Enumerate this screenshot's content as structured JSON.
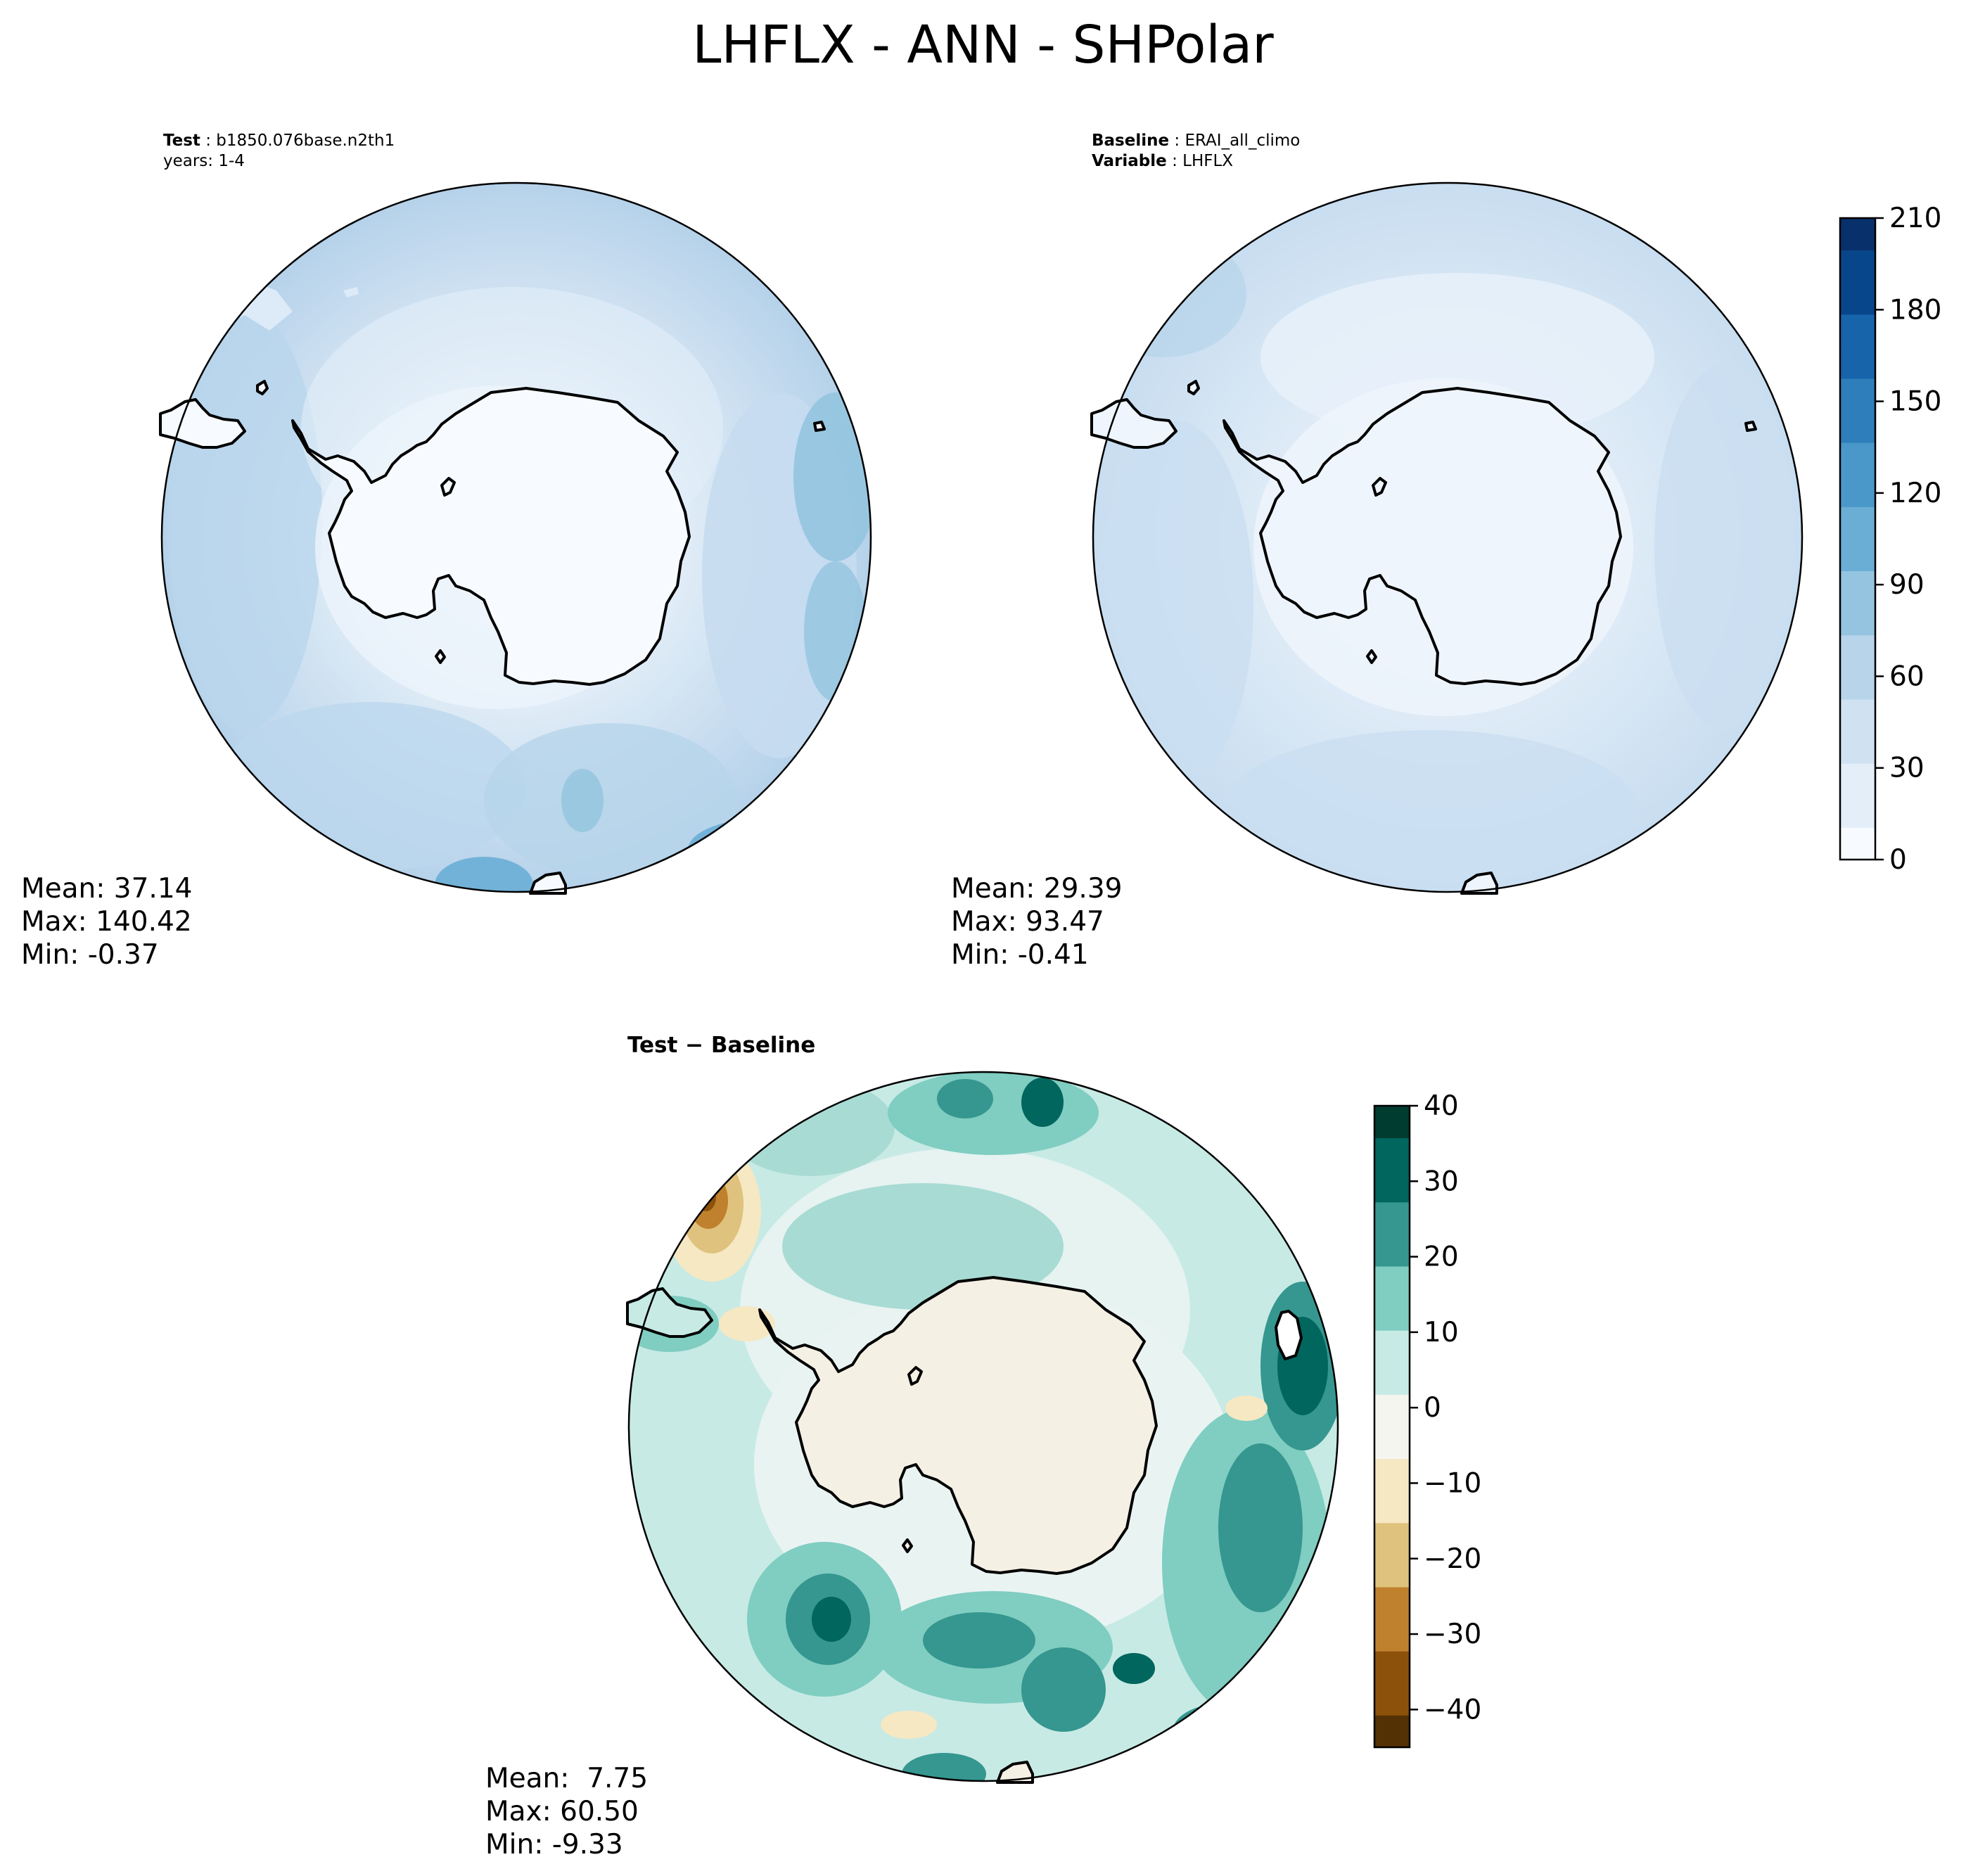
{
  "figure": {
    "title": "LHFLX - ANN - SHPolar"
  },
  "panels": {
    "test": {
      "label_key": "Test",
      "label_value": "b1850.076base.n2th1",
      "years": "years: 1-4",
      "stats": {
        "mean": "Mean: 37.14",
        "max": "Max: 140.42",
        "min": "Min: -0.37"
      }
    },
    "baseline": {
      "label_key": "Baseline",
      "label_value": "ERAI_all_climo",
      "variable_key": "Variable",
      "variable_value": "LHFLX",
      "stats": {
        "mean": "Mean: 29.39",
        "max": "Max: 93.47",
        "min": "Min: -0.41"
      }
    },
    "difference": {
      "title": "Test − Baseline",
      "stats": {
        "mean": "Mean:  7.75",
        "max": "Max: 60.50",
        "min": "Min: -9.33"
      }
    }
  },
  "colorbars": {
    "main": {
      "ticks": [
        "0",
        "30",
        "60",
        "90",
        "120",
        "150",
        "180",
        "210"
      ],
      "range": [
        0,
        210
      ],
      "levels": 21,
      "colors": [
        "#f7fbff",
        "#e3eef9",
        "#d0e1f2",
        "#b7d4ea",
        "#94c4df",
        "#6aaed6",
        "#4a98c9",
        "#2e7ebc",
        "#1764ab",
        "#08468b",
        "#08306b"
      ]
    },
    "diff": {
      "ticks": [
        "40",
        "30",
        "20",
        "10",
        "0",
        "−10",
        "−20",
        "−30",
        "−40"
      ],
      "range": [
        -45,
        40
      ],
      "colors": [
        "#543005",
        "#8c510a",
        "#bf812d",
        "#dfc27d",
        "#f6e8c3",
        "#f5f5f0",
        "#c7eae5",
        "#80cdc1",
        "#35978f",
        "#01665e",
        "#003c30"
      ]
    }
  },
  "chart_data": [
    {
      "type": "heatmap",
      "title": "Test",
      "projection": "south polar stereographic",
      "variable": "LHFLX",
      "summary": {
        "mean": 37.14,
        "max": 140.42,
        "min": -0.37
      },
      "color_range": [
        0,
        210
      ]
    },
    {
      "type": "heatmap",
      "title": "Baseline",
      "projection": "south polar stereographic",
      "variable": "LHFLX",
      "summary": {
        "mean": 29.39,
        "max": 93.47,
        "min": -0.41
      },
      "color_range": [
        0,
        210
      ]
    },
    {
      "type": "heatmap",
      "title": "Test − Baseline",
      "projection": "south polar stereographic",
      "variable": "LHFLX",
      "summary": {
        "mean": 7.75,
        "max": 60.5,
        "min": -9.33
      },
      "color_range": [
        -45,
        40
      ]
    }
  ]
}
